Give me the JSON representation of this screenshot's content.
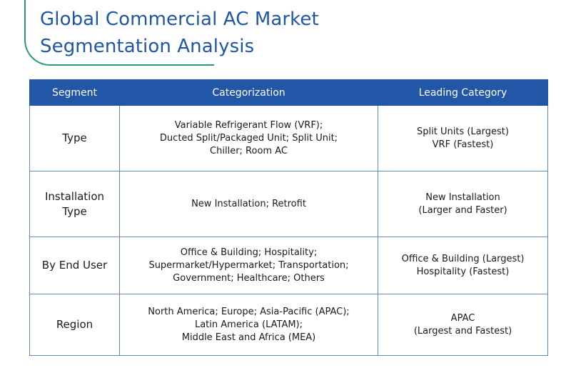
{
  "title_lines": [
    "Global Commercial AC Market",
    "Segmentation Analysis"
  ],
  "table": {
    "headers": [
      "Segment",
      "Categorization",
      "Leading Category"
    ],
    "rows": [
      {
        "segment": [
          "Type"
        ],
        "categorization": [
          "Variable Refrigerant Flow (VRF);",
          "Ducted Split/Packaged Unit; Split Unit;",
          "Chiller; Room AC"
        ],
        "leading": [
          "Split Units (Largest)",
          "VRF (Fastest)"
        ]
      },
      {
        "segment": [
          "Installation",
          "Type"
        ],
        "categorization": [
          "New Installation; Retrofit"
        ],
        "leading": [
          "New Installation",
          "(Larger and Faster)"
        ]
      },
      {
        "segment": [
          "By End User"
        ],
        "categorization": [
          "Office & Building; Hospitality;",
          "Supermarket/Hypermarket; Transportation;",
          "Government; Healthcare; Others"
        ],
        "leading": [
          "Office & Building (Largest)",
          "Hospitality (Fastest)"
        ]
      },
      {
        "segment": [
          "Region"
        ],
        "categorization": [
          "North America; Europe; Asia-Pacific (APAC);",
          "Latin America (LATAM);",
          "Middle East and Africa (MEA)"
        ],
        "leading": [
          "APAC",
          "(Largest and Fastest)"
        ]
      }
    ]
  },
  "colors": {
    "title": "#1f56a8",
    "header_bg": "#2256a6",
    "border": "#5d87c6",
    "accent_curve": "#2e9a6e"
  }
}
